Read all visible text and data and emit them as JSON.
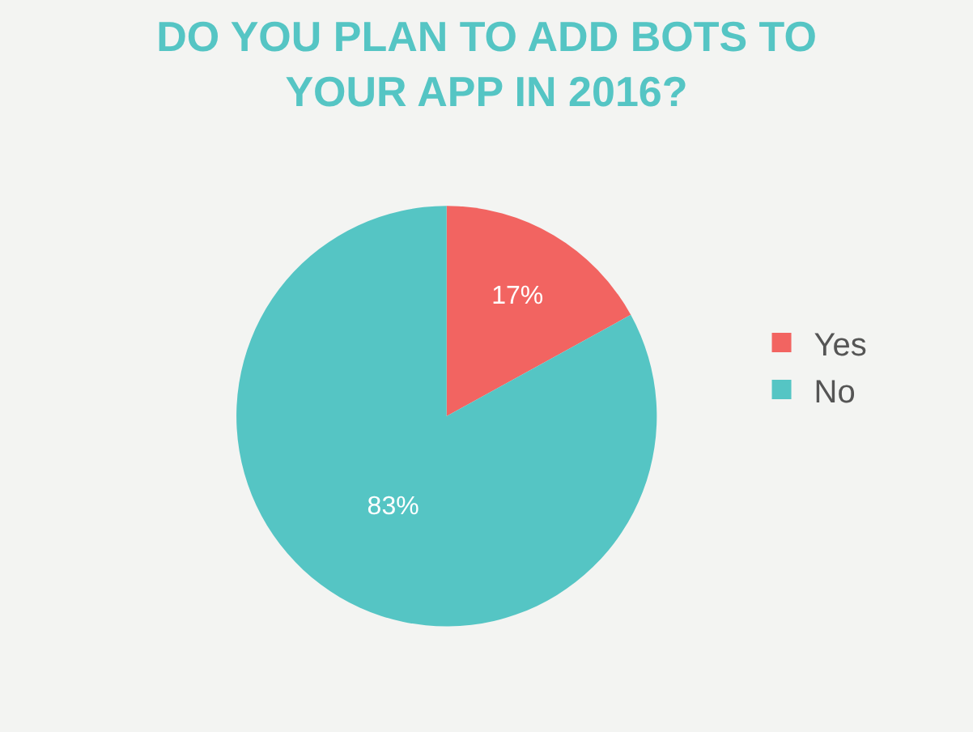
{
  "chart_data": {
    "type": "pie",
    "title": "DO YOU PLAN TO ADD BOTS TO YOUR APP IN 2016?",
    "categories": [
      "Yes",
      "No"
    ],
    "values": [
      17,
      83
    ],
    "colors": [
      "#f26461",
      "#55c5c4"
    ],
    "value_labels": [
      "17%",
      "83%"
    ],
    "legend": "right"
  }
}
